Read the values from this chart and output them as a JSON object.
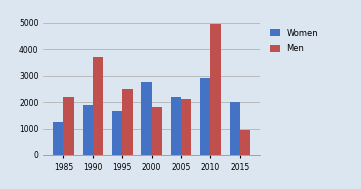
{
  "years": [
    1985,
    1990,
    1995,
    2000,
    2005,
    2010,
    2015
  ],
  "women": [
    1250,
    1900,
    1650,
    2750,
    2200,
    2900,
    2000
  ],
  "men": [
    2200,
    3700,
    2500,
    1800,
    2100,
    4950,
    950
  ],
  "women_color": "#4472C4",
  "men_color": "#C0504D",
  "ylim": [
    0,
    5500
  ],
  "yticks": [
    0,
    1000,
    2000,
    3000,
    4000,
    5000
  ],
  "legend_labels": [
    "Women",
    "Men"
  ],
  "bar_width": 0.35,
  "bg_color": "#DCE6F1",
  "grid_color": "#AAAAAA"
}
